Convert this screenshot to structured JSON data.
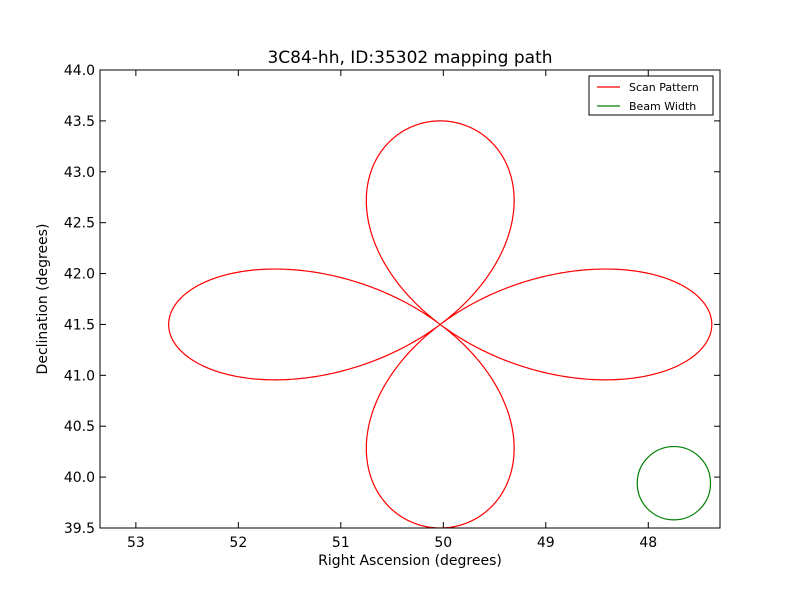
{
  "chart_data": {
    "type": "line",
    "title": "3C84-hh, ID:35302 mapping path",
    "xlabel": "Right Ascension (degrees)",
    "ylabel": "Declination (degrees)",
    "xlim": [
      53.35,
      47.3
    ],
    "ylim": [
      39.5,
      44.0
    ],
    "x_inverted": true,
    "xticks": [
      53,
      52,
      51,
      50,
      49,
      48
    ],
    "xtick_labels": [
      "53",
      "52",
      "51",
      "50",
      "49",
      "48"
    ],
    "yticks": [
      39.5,
      40.0,
      40.5,
      41.0,
      41.5,
      42.0,
      42.5,
      43.0,
      43.5,
      44.0
    ],
    "ytick_labels": [
      "39.5",
      "40.0",
      "40.5",
      "41.0",
      "41.5",
      "42.0",
      "42.5",
      "43.0",
      "43.5",
      "44.0"
    ],
    "grid": false,
    "legend_position": "top-right",
    "series": [
      {
        "name": "Scan Pattern",
        "color": "#ff0000",
        "shape": "four-petal rosette",
        "center": [
          50.03,
          41.5
        ],
        "petal_extent_ra": 2.65,
        "petal_extent_dec": 2.0,
        "petals": [
          "north",
          "south",
          "east",
          "west"
        ]
      },
      {
        "name": "Beam Width",
        "color": "#008000",
        "shape": "circle",
        "center": [
          47.75,
          39.94
        ],
        "radius_dec": 0.36
      }
    ]
  }
}
